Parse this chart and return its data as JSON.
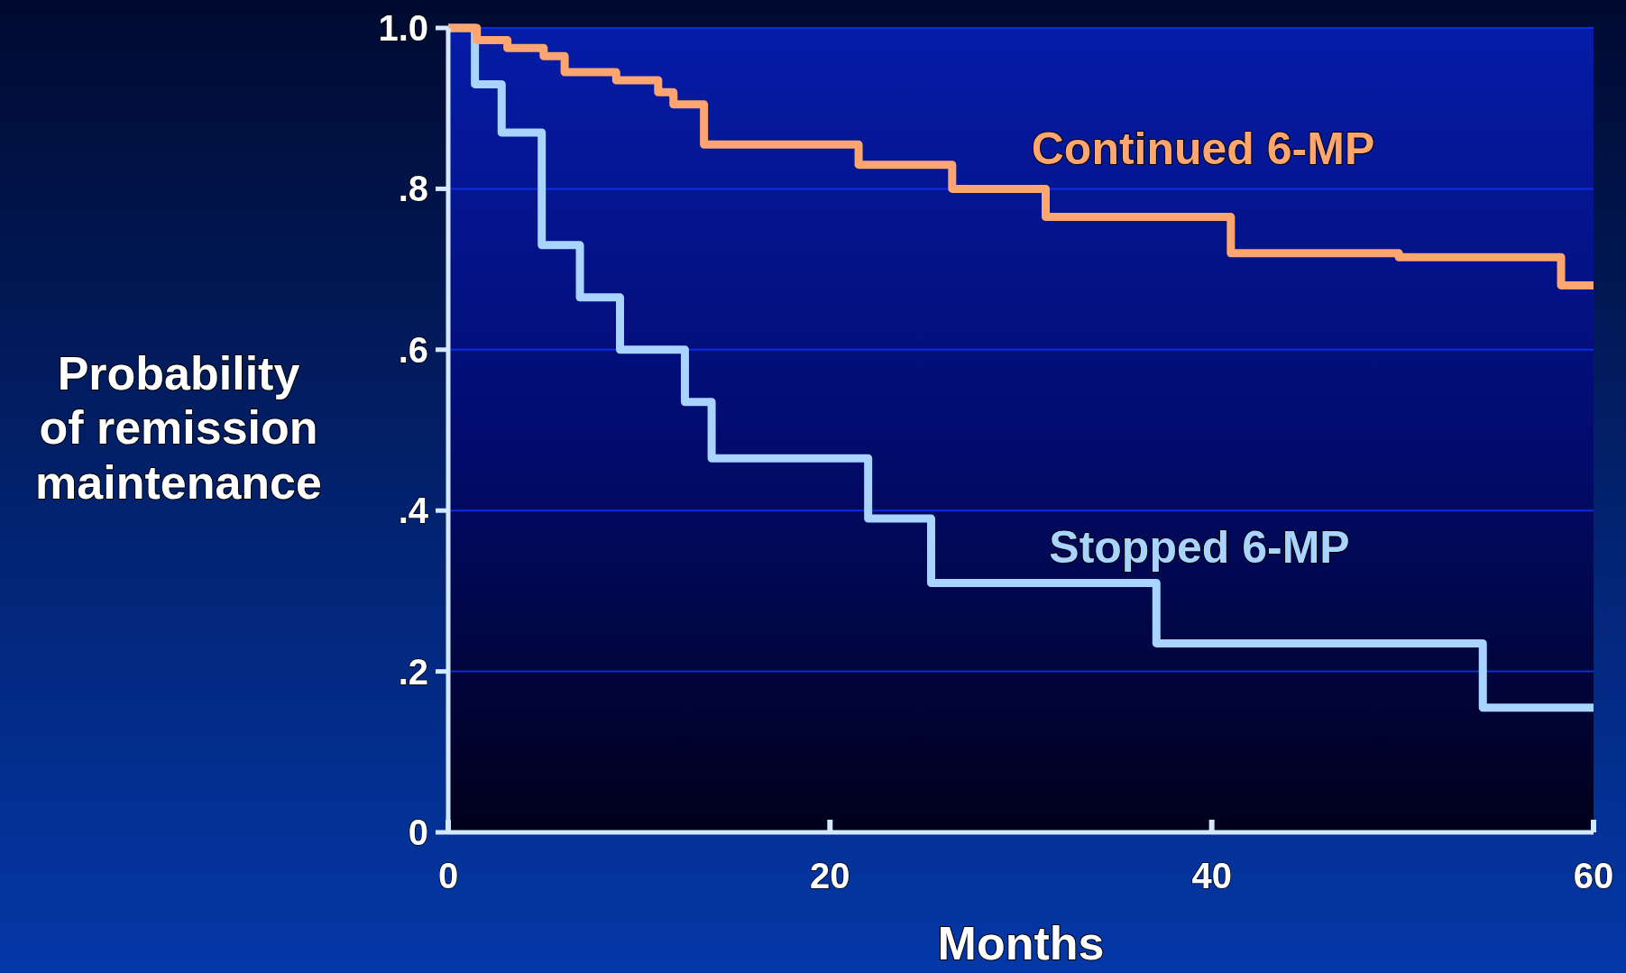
{
  "chart_data": {
    "type": "step",
    "xlabel": "Months",
    "ylabel": "Probability of remission maintenance",
    "xlim": [
      0,
      60
    ],
    "xticks": [
      0,
      20,
      40,
      60
    ],
    "ylim": [
      0,
      1
    ],
    "yticks": [
      {
        "value": 0,
        "label": "0"
      },
      {
        "value": 0.2,
        "label": ".2"
      },
      {
        "value": 0.4,
        "label": ".4"
      },
      {
        "value": 0.6,
        "label": ".6"
      },
      {
        "value": 0.8,
        "label": ".8"
      },
      {
        "value": 1,
        "label": "1.0"
      }
    ],
    "grid": "y",
    "marker": "none",
    "line_style": "solid",
    "series": [
      {
        "name": "Continued 6-MP",
        "color": "#ffa570",
        "x": [
          0,
          1.5,
          3.1,
          5,
          6.1,
          8.8,
          11,
          11.8,
          13.4,
          21.5,
          26.4,
          31.3,
          41,
          49.8,
          58.3,
          60
        ],
        "values": [
          1,
          0.985,
          0.975,
          0.965,
          0.945,
          0.935,
          0.92,
          0.905,
          0.855,
          0.83,
          0.8,
          0.765,
          0.72,
          0.715,
          0.68,
          0.68
        ]
      },
      {
        "name": "Stopped 6-MP",
        "color": "#a8d4ff",
        "x": [
          0,
          1.4,
          2.8,
          4.9,
          6.9,
          9,
          12.4,
          13.8,
          22,
          25.3,
          37.1,
          54.2,
          60
        ],
        "values": [
          1,
          0.93,
          0.87,
          0.73,
          0.665,
          0.6,
          0.535,
          0.465,
          0.39,
          0.31,
          0.235,
          0.155,
          0.155
        ]
      }
    ]
  }
}
